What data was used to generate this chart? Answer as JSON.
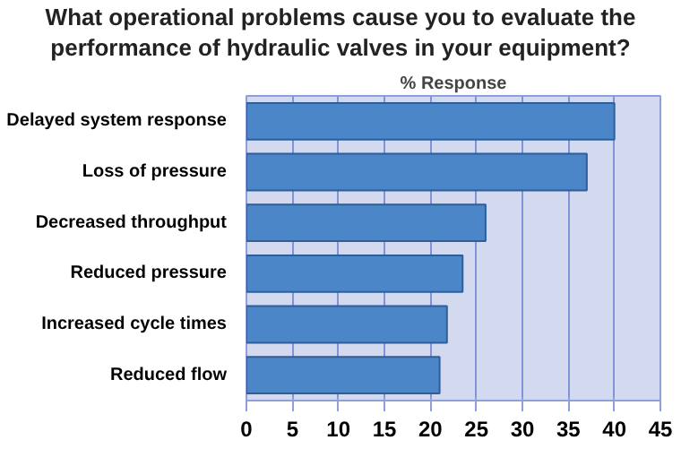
{
  "chart_data": {
    "type": "bar",
    "orientation": "horizontal",
    "title": "What operational problems cause you to evaluate the\nperformance of hydraulic valves in your equipment?",
    "xlabel": "% Response",
    "categories": [
      "Delayed system response",
      "Loss of pressure",
      "Decreased throughput",
      "Reduced pressure",
      "Increased cycle times",
      "Reduced flow"
    ],
    "values": [
      40,
      37,
      26,
      23.5,
      21.8,
      21
    ],
    "color": "#4a86c8",
    "xlim": [
      0,
      45
    ],
    "xticks": [
      0,
      5,
      10,
      15,
      20,
      25,
      30,
      35,
      40,
      45
    ],
    "grid": "x"
  }
}
